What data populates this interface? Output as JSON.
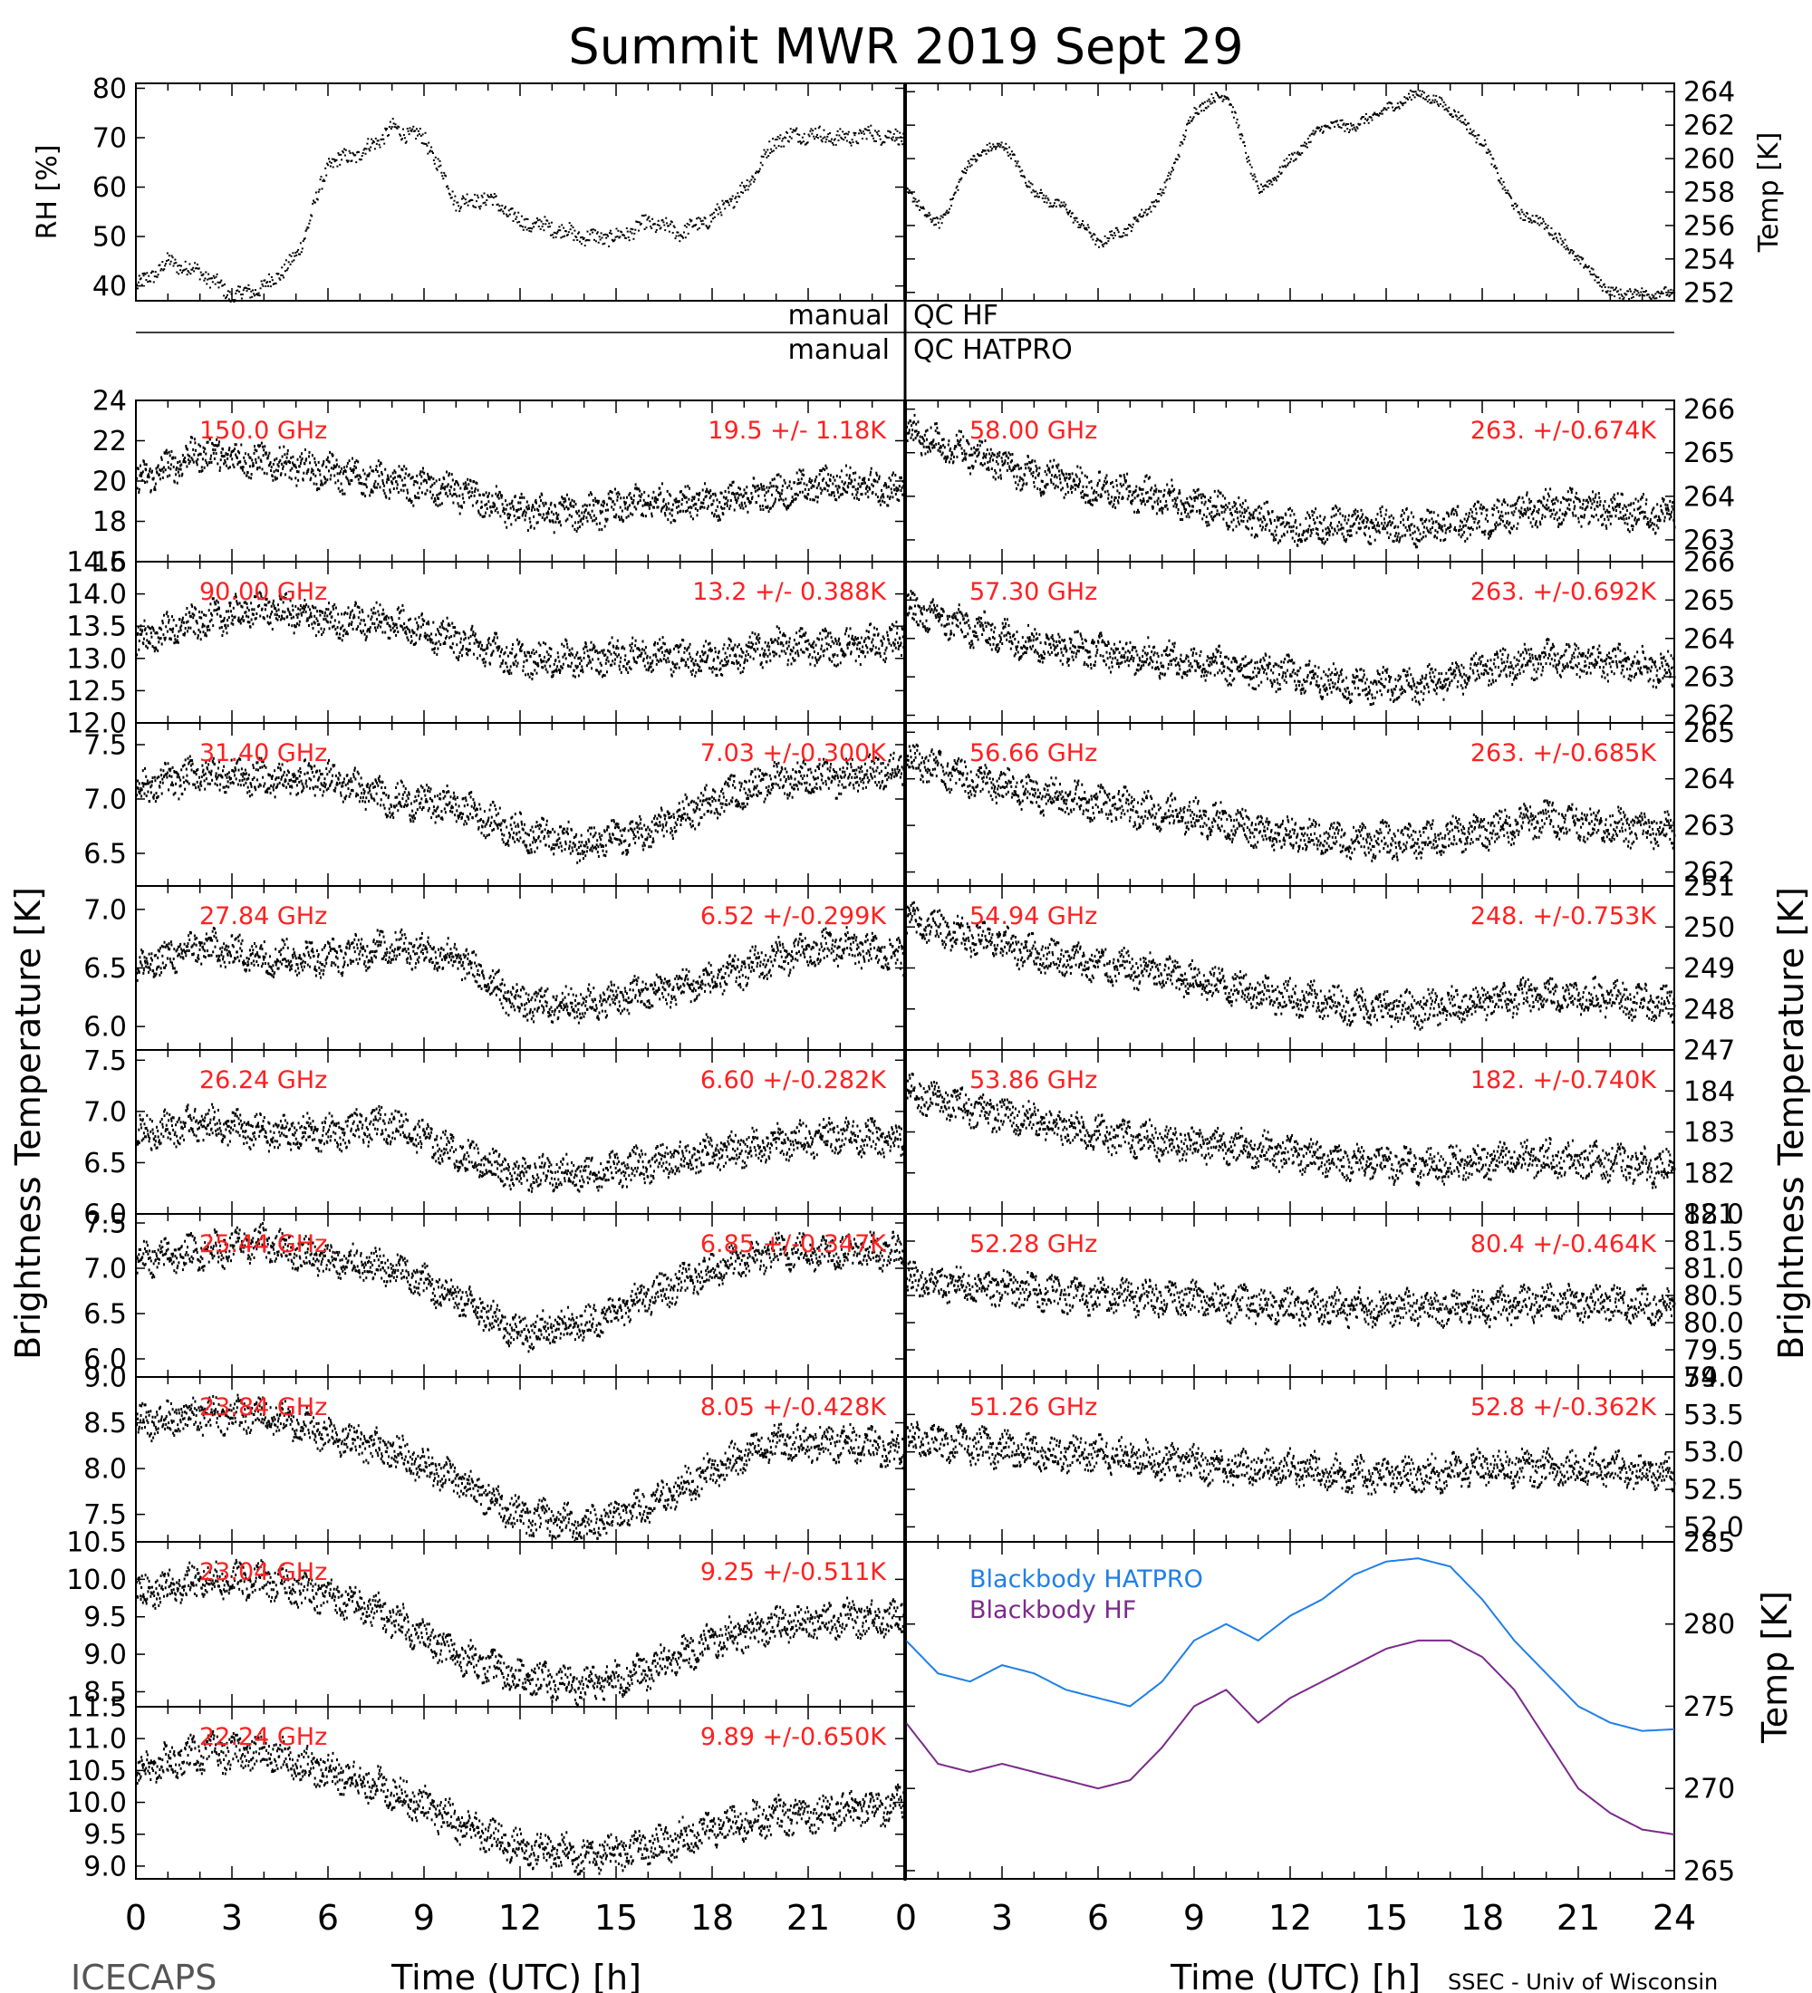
{
  "title": "Summit MWR 2019 Sept 29",
  "footer": {
    "left": "ICECAPS",
    "right": "SSEC - Univ of Wisconsin"
  },
  "y_label_left": "Brightness Temperature [K]",
  "y_label_right": "Brightness Temperature [K]",
  "qc": {
    "hf_left": "manual",
    "hf_right": "QC HF",
    "hatpro_left": "manual",
    "hatpro_right": "QC HATPRO"
  },
  "chart_data": [
    {
      "id": "rh",
      "type": "scatter",
      "ylabel": "RH [%]",
      "ylim": [
        37,
        81
      ],
      "yticks": [
        40,
        50,
        60,
        70,
        80
      ],
      "x": [
        0,
        1,
        2,
        3,
        4,
        5,
        6,
        7,
        8,
        9,
        10,
        11,
        12,
        13,
        14,
        15,
        16,
        17,
        18,
        19,
        20,
        21,
        22,
        23,
        24
      ],
      "values": [
        40,
        45,
        43,
        38,
        40,
        46,
        65,
        67,
        72,
        70,
        57,
        58,
        53,
        52,
        50,
        50,
        53,
        51,
        54,
        60,
        70,
        71,
        70,
        71,
        70
      ]
    },
    {
      "id": "temp",
      "type": "scatter",
      "ylabel": "Temp [K]",
      "ylim": [
        251.5,
        264.5
      ],
      "yticks": [
        252,
        254,
        256,
        258,
        260,
        262,
        264
      ],
      "x": [
        0,
        1,
        2,
        3,
        4,
        5,
        6,
        7,
        8,
        9,
        10,
        11,
        12,
        13,
        14,
        15,
        16,
        17,
        18,
        19,
        20,
        21,
        22,
        23,
        24
      ],
      "values": [
        258,
        256,
        260,
        261,
        258,
        257,
        255,
        256,
        258,
        263,
        264,
        258,
        260,
        262,
        262,
        263,
        264,
        263,
        261,
        257,
        256,
        254,
        252,
        252,
        252
      ]
    },
    {
      "id": "ch-150",
      "label": "150.0 GHz",
      "stat": "19.5 +/-  1.18K",
      "type": "scatter",
      "ylim": [
        16,
        24
      ],
      "yticks": [
        16,
        18,
        20,
        22,
        24
      ],
      "x": [
        0,
        2,
        4,
        6,
        8,
        10,
        12,
        14,
        16,
        18,
        20,
        22,
        24
      ],
      "values": [
        20,
        21.5,
        21,
        20.5,
        20,
        19.5,
        18.5,
        18.5,
        19,
        19,
        19.5,
        20,
        19.5
      ]
    },
    {
      "id": "ch-90",
      "label": "90.00 GHz",
      "stat": "13.2 +/- 0.388K",
      "type": "scatter",
      "ylim": [
        12,
        14.5
      ],
      "yticks": [
        12.0,
        12.5,
        13.0,
        13.5,
        14.0,
        14.5
      ],
      "x": [
        0,
        2,
        4,
        6,
        8,
        10,
        12,
        14,
        16,
        18,
        20,
        22,
        24
      ],
      "values": [
        13.3,
        13.6,
        13.8,
        13.6,
        13.6,
        13.3,
        13.0,
        13.0,
        13.1,
        13.0,
        13.2,
        13.2,
        13.3
      ]
    },
    {
      "id": "ch-3140",
      "label": "31.40 GHz",
      "stat": "7.03 +/-0.300K",
      "type": "scatter",
      "ylim": [
        6.2,
        7.7
      ],
      "yticks": [
        6.5,
        7.0,
        7.5
      ],
      "x": [
        0,
        2,
        4,
        6,
        8,
        10,
        12,
        14,
        16,
        18,
        20,
        22,
        24
      ],
      "values": [
        7.1,
        7.25,
        7.2,
        7.2,
        7.0,
        6.95,
        6.7,
        6.6,
        6.7,
        7.0,
        7.2,
        7.2,
        7.3
      ]
    },
    {
      "id": "ch-2784",
      "label": "27.84 GHz",
      "stat": "6.52 +/-0.299K",
      "type": "scatter",
      "ylim": [
        5.8,
        7.2
      ],
      "yticks": [
        6.0,
        6.5,
        7.0
      ],
      "x": [
        0,
        2,
        4,
        6,
        8,
        10,
        12,
        14,
        16,
        18,
        20,
        22,
        24
      ],
      "values": [
        6.5,
        6.7,
        6.6,
        6.6,
        6.7,
        6.6,
        6.2,
        6.2,
        6.3,
        6.4,
        6.6,
        6.7,
        6.6
      ]
    },
    {
      "id": "ch-2624",
      "label": "26.24 GHz",
      "stat": "6.60 +/-0.282K",
      "type": "scatter",
      "ylim": [
        6.0,
        7.6
      ],
      "yticks": [
        6.0,
        6.5,
        7.0,
        7.5
      ],
      "x": [
        0,
        2,
        4,
        6,
        8,
        10,
        12,
        14,
        16,
        18,
        20,
        22,
        24
      ],
      "values": [
        6.8,
        6.9,
        6.8,
        6.8,
        6.9,
        6.6,
        6.4,
        6.4,
        6.5,
        6.6,
        6.7,
        6.8,
        6.7
      ]
    },
    {
      "id": "ch-2544",
      "label": "25.44 GHz",
      "stat": "6.85 +/-0.347K",
      "type": "scatter",
      "ylim": [
        5.8,
        7.6
      ],
      "yticks": [
        6.0,
        6.5,
        7.0,
        7.5
      ],
      "x": [
        0,
        2,
        4,
        6,
        8,
        10,
        12,
        14,
        16,
        18,
        20,
        22,
        24
      ],
      "values": [
        7.1,
        7.2,
        7.3,
        7.1,
        7.0,
        6.7,
        6.3,
        6.4,
        6.7,
        7.0,
        7.2,
        7.2,
        7.2
      ]
    },
    {
      "id": "ch-2384",
      "label": "23.84 GHz",
      "stat": "8.05 +/-0.428K",
      "type": "scatter",
      "ylim": [
        7.2,
        9.0
      ],
      "yticks": [
        7.5,
        8.0,
        8.5,
        9.0
      ],
      "x": [
        0,
        2,
        4,
        6,
        8,
        10,
        12,
        14,
        16,
        18,
        20,
        22,
        24
      ],
      "values": [
        8.5,
        8.6,
        8.6,
        8.4,
        8.2,
        7.9,
        7.5,
        7.4,
        7.6,
        8.0,
        8.3,
        8.3,
        8.2
      ]
    },
    {
      "id": "ch-2304",
      "label": "23.04 GHz",
      "stat": "9.25 +/-0.511K",
      "type": "scatter",
      "ylim": [
        8.3,
        10.5
      ],
      "yticks": [
        8.5,
        9.0,
        9.5,
        10.0,
        10.5
      ],
      "x": [
        0,
        2,
        4,
        6,
        8,
        10,
        12,
        14,
        16,
        18,
        20,
        22,
        24
      ],
      "values": [
        9.8,
        10.0,
        10.0,
        9.8,
        9.5,
        9.0,
        8.7,
        8.6,
        8.8,
        9.2,
        9.4,
        9.5,
        9.5
      ]
    },
    {
      "id": "ch-2224",
      "label": "22.24 GHz",
      "stat": "9.89 +/-0.650K",
      "type": "scatter",
      "ylim": [
        8.8,
        11.5
      ],
      "yticks": [
        9.0,
        9.5,
        10.0,
        10.5,
        11.0,
        11.5
      ],
      "x": [
        0,
        2,
        4,
        6,
        8,
        10,
        12,
        14,
        16,
        18,
        20,
        22,
        24
      ],
      "values": [
        10.5,
        10.8,
        10.8,
        10.5,
        10.2,
        9.7,
        9.3,
        9.2,
        9.3,
        9.6,
        9.8,
        9.9,
        10.0
      ]
    },
    {
      "id": "ch-5800",
      "label": "58.00 GHz",
      "stat": "263. +/-0.674K",
      "type": "scatter",
      "ylim": [
        262.5,
        266.2
      ],
      "yticks": [
        263,
        264,
        265,
        266
      ],
      "x": [
        0,
        2,
        4,
        6,
        8,
        10,
        12,
        14,
        16,
        18,
        20,
        22,
        24
      ],
      "values": [
        265.5,
        265,
        264.5,
        264.2,
        264,
        263.7,
        263.3,
        263.4,
        263.3,
        263.5,
        263.8,
        263.7,
        263.6
      ]
    },
    {
      "id": "ch-5730",
      "label": "57.30 GHz",
      "stat": "263. +/-0.692K",
      "type": "scatter",
      "ylim": [
        261.8,
        266
      ],
      "yticks": [
        262,
        263,
        264,
        265,
        266
      ],
      "x": [
        0,
        2,
        4,
        6,
        8,
        10,
        12,
        14,
        16,
        18,
        20,
        22,
        24
      ],
      "values": [
        264.8,
        264.3,
        263.9,
        263.7,
        263.5,
        263.3,
        263.1,
        262.8,
        262.8,
        263.2,
        263.5,
        263.4,
        263.2
      ]
    },
    {
      "id": "ch-5666",
      "label": "56.66 GHz",
      "stat": "263. +/-0.685K",
      "type": "scatter",
      "ylim": [
        261.7,
        265.2
      ],
      "yticks": [
        262,
        263,
        264,
        265
      ],
      "x": [
        0,
        2,
        4,
        6,
        8,
        10,
        12,
        14,
        16,
        18,
        20,
        22,
        24
      ],
      "values": [
        264.5,
        264,
        263.7,
        263.5,
        263.3,
        263.1,
        262.8,
        262.7,
        262.7,
        262.9,
        263.2,
        263.0,
        262.9
      ]
    },
    {
      "id": "ch-5494",
      "label": "54.94 GHz",
      "stat": "248. +/-0.753K",
      "type": "scatter",
      "ylim": [
        247,
        251
      ],
      "yticks": [
        247,
        248,
        249,
        250,
        251
      ],
      "x": [
        0,
        2,
        4,
        6,
        8,
        10,
        12,
        14,
        16,
        18,
        20,
        22,
        24
      ],
      "values": [
        250.2,
        249.8,
        249.4,
        249.1,
        248.9,
        248.6,
        248.3,
        248.1,
        248.0,
        248.2,
        248.4,
        248.3,
        248.1
      ]
    },
    {
      "id": "ch-5386",
      "label": "53.86 GHz",
      "stat": "182. +/-0.740K",
      "type": "scatter",
      "ylim": [
        181,
        185
      ],
      "yticks": [
        181,
        182,
        183,
        184
      ],
      "x": [
        0,
        2,
        4,
        6,
        8,
        10,
        12,
        14,
        16,
        18,
        20,
        22,
        24
      ],
      "values": [
        184.0,
        183.6,
        183.3,
        183.0,
        182.8,
        182.7,
        182.5,
        182.3,
        182.2,
        182.3,
        182.4,
        182.3,
        182.1
      ]
    },
    {
      "id": "ch-5228",
      "label": "52.28 GHz",
      "stat": "80.4 +/-0.464K",
      "type": "scatter",
      "ylim": [
        79,
        82
      ],
      "yticks": [
        79.0,
        79.5,
        80.0,
        80.5,
        81.0,
        81.5,
        82.0
      ],
      "x": [
        0,
        2,
        4,
        6,
        8,
        10,
        12,
        14,
        16,
        18,
        20,
        22,
        24
      ],
      "values": [
        80.8,
        80.7,
        80.6,
        80.5,
        80.5,
        80.4,
        80.3,
        80.3,
        80.3,
        80.3,
        80.4,
        80.4,
        80.3
      ]
    },
    {
      "id": "ch-5126",
      "label": "51.26 GHz",
      "stat": "52.8 +/-0.362K",
      "type": "scatter",
      "ylim": [
        51.8,
        54
      ],
      "yticks": [
        52.0,
        52.5,
        53.0,
        53.5,
        54.0
      ],
      "x": [
        0,
        2,
        4,
        6,
        8,
        10,
        12,
        14,
        16,
        18,
        20,
        22,
        24
      ],
      "values": [
        53.2,
        53.1,
        53.0,
        53.0,
        52.9,
        52.8,
        52.8,
        52.7,
        52.7,
        52.8,
        52.8,
        52.8,
        52.7
      ]
    },
    {
      "id": "blackbody",
      "type": "line",
      "ylabel": "Temp [K]",
      "ylim": [
        264.5,
        285
      ],
      "yticks": [
        265,
        270,
        275,
        280,
        285
      ],
      "x": [
        0,
        1,
        2,
        3,
        4,
        5,
        6,
        7,
        8,
        9,
        10,
        11,
        12,
        13,
        14,
        15,
        16,
        17,
        18,
        19,
        20,
        21,
        22,
        23,
        24
      ],
      "series": [
        {
          "name": "Blackbody HATPRO",
          "color": "#1f7fe8",
          "values": [
            279,
            277,
            276.5,
            277.5,
            277,
            276,
            275.5,
            275,
            276.5,
            279,
            280,
            279,
            280.5,
            281.5,
            283,
            283.8,
            284,
            283.5,
            281.5,
            279,
            277,
            275,
            274,
            273.5,
            273.6
          ]
        },
        {
          "name": "Blackbody HF",
          "color": "#7b2a8a",
          "values": [
            274,
            271.5,
            271,
            271.5,
            271,
            270.5,
            270,
            270.5,
            272.5,
            275,
            276,
            274,
            275.5,
            276.5,
            277.5,
            278.5,
            279,
            279,
            278,
            276,
            273,
            270,
            268.5,
            267.5,
            267.2
          ]
        }
      ]
    }
  ],
  "x_axis": {
    "label": "Time (UTC) [h]",
    "ticks_left": [
      "0",
      "3",
      "6",
      "9",
      "12",
      "15",
      "18",
      "21"
    ],
    "ticks_right": [
      "0",
      "3",
      "6",
      "9",
      "12",
      "15",
      "18",
      "21",
      "24"
    ]
  }
}
